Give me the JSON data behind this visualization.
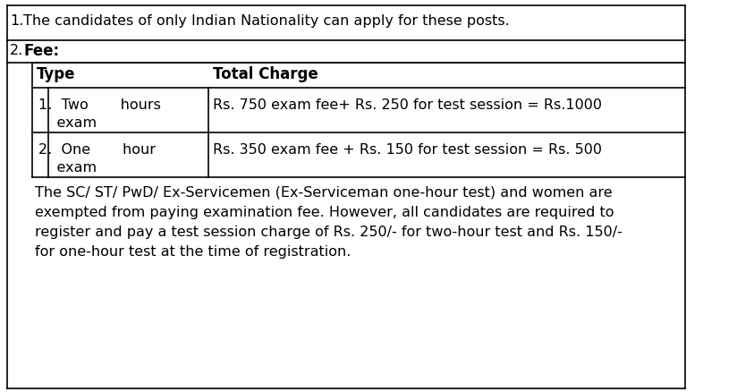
{
  "bg_color": "#ffffff",
  "text_color": "#000000",
  "row1_text": "The candidates of only Indian Nationality can apply for these posts.",
  "row2_label": "Fee:",
  "col1_header": "Type",
  "col2_header": "Total Charge",
  "type_row1_col1_line1": "1.  Two       hours",
  "type_row1_col1_line2": "    exam",
  "type_row1_col2": "Rs. 750 exam fee+ Rs. 250 for test session = Rs.1000",
  "type_row2_col1_line1": "2.  One       hour",
  "type_row2_col1_line2": "    exam",
  "type_row2_col2": "Rs. 350 exam fee + Rs. 150 for test session = Rs. 500",
  "footer_lines": [
    "The SC/ ST/ PwD/ Ex-Servicemen (Ex-Serviceman one-hour test) and women are",
    "exempted from paying examination fee. However, all candidates are required to",
    "register and pay a test session charge of Rs. 250/- for two-hour test and Rs. 150/-",
    "for one-hour test at the time of registration."
  ],
  "font_size": 11.5,
  "header_font_size": 12
}
